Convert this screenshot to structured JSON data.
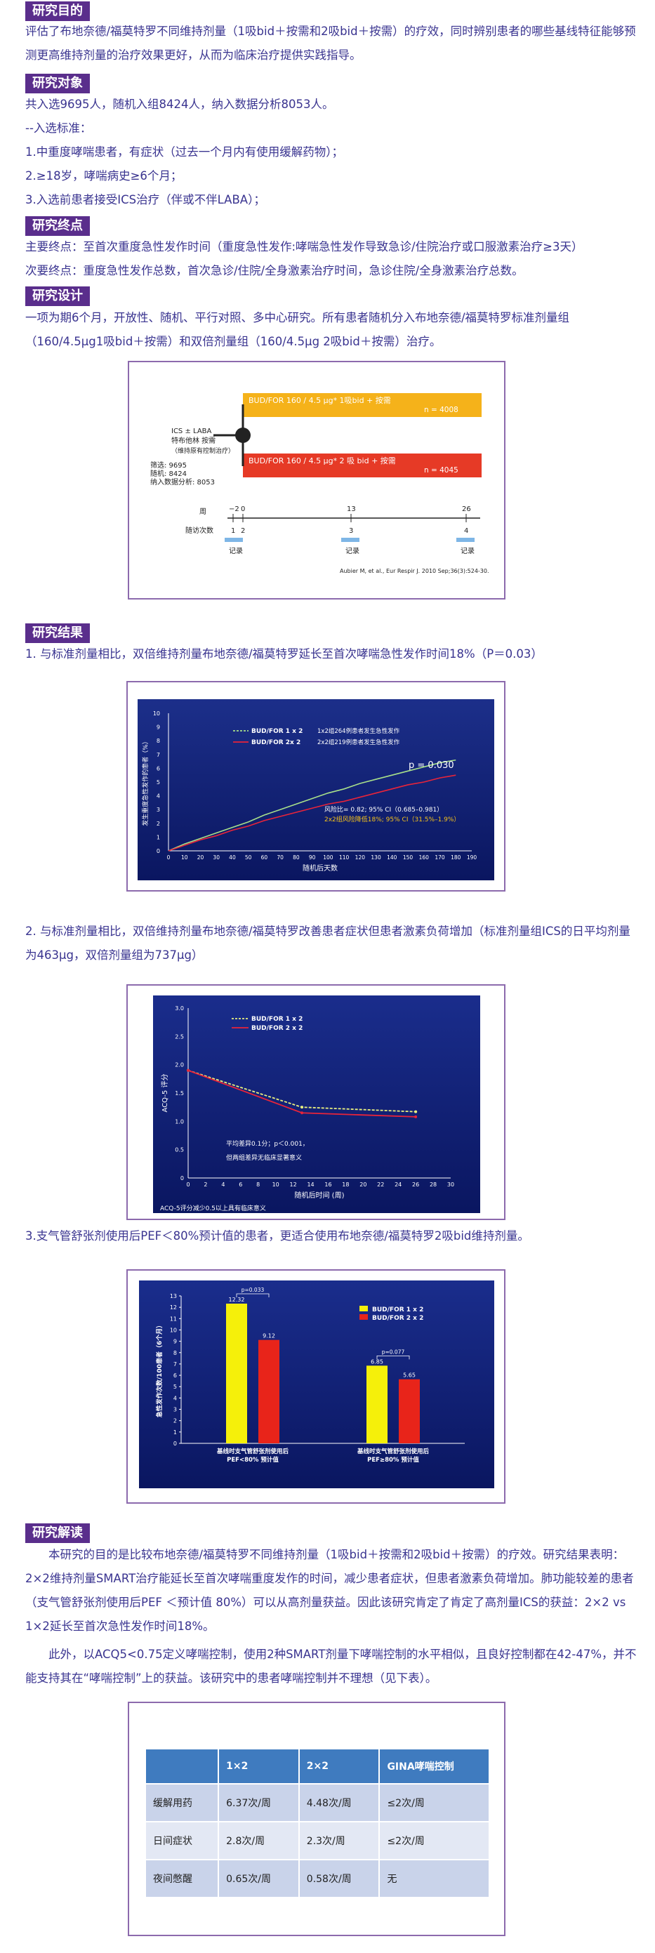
{
  "sections": {
    "purpose": {
      "title": "研究目的",
      "text": "评估了布地奈德/福莫特罗不同维持剂量（1吸bid＋按需和2吸bid＋按需）的疗效，同时辨别患者的哪些基线特征能够预测更高维持剂量的治疗效果更好，从而为临床治疗提供实践指导。"
    },
    "subjects": {
      "title": "研究对象",
      "lines": [
        "共入选9695人，随机入组8424人，纳入数据分析8053人。",
        "--入选标准：",
        "1.中重度哮喘患者，有症状（过去一个月内有使用缓解药物）；",
        "2.≥18岁，哮喘病史≥6个月；",
        "3.入选前患者接受ICS治疗（伴或不伴LABA）；"
      ]
    },
    "endpoints": {
      "title": "研究终点",
      "primary": "主要终点：至首次重度急性发作时间（重度急性发作:哮喘急性发作导致急诊/住院治疗或口服激素治疗≥3天）",
      "secondary": "次要终点：重度急性发作总数，首次急诊/住院/全身激素治疗时间，急诊住院/全身激素治疗总数。"
    },
    "design": {
      "title": "研究设计",
      "text": "一项为期6个月，开放性、随机、平行对照、多中心研究。所有患者随机分入布地奈德/福莫特罗标准剂量组（160/4.5μg1吸bid＋按需）和双倍剂量组（160/4.5μg 2吸bid＋按需）治疗。"
    },
    "results": {
      "title": "研究结果",
      "item1": "1. 与标准剂量相比，双倍维持剂量布地奈德/福莫特罗延长至首次哮喘急性发作时间18%（P＝0.03）",
      "item2": "2. 与标准剂量相比，双倍维持剂量布地奈德/福莫特罗改善患者症状但患者激素负荷增加（标准剂量组ICS的日平均剂量为463μg，双倍剂量组为737μg）",
      "item3": "3.支气管舒张剂使用后PEF＜80%预计值的患者，更适合使用布地奈德/福莫特罗2吸bid维持剂量。"
    },
    "interpretation": {
      "title": "研究解读",
      "para1": "本研究的目的是比较布地奈德/福莫特罗不同维持剂量（1吸bid＋按需和2吸bid＋按需）的疗效。研究结果表明：2×2维持剂量SMART治疗能延长至首次哮喘重度发作的时间，减少患者症状，但患者激素负荷增加。肺功能较差的患者（支气管舒张剂使用后PEF ＜预计值 80%）可以从高剂量获益。因此该研究肯定了肯定了高剂量ICS的获益：2×2 vs 1×2延长至首次急性发作时间18%。",
      "para2": "此外，以ACQ5<0.75定义哮喘控制，使用2种SMART剂量下哮喘控制的水平相似，且良好控制都在42-47%，并不能支持其在“哮喘控制”上的获益。该研究中的患者哮喘控制并不理想（见下表）。"
    }
  },
  "design_figure": {
    "arm1": "BUD/FOR 160 / 4.5 μg* 1吸bid + 按需",
    "arm1_n": "n = 4008",
    "arm2": "BUD/FOR 160 / 4.5 μg* 2 吸 bid + 按需",
    "arm2_n": "n = 4045",
    "left_label_1": "ICS ± LABA",
    "left_label_2": "特布他林 按需",
    "left_label_3": "（维持原有控制治疗）",
    "screened": "筛选: 9695",
    "randomized": "随机: 8424",
    "analyzed": "纳入数据分析: 8053",
    "week_label": "周",
    "visit_label": "随访次数",
    "record_label": "记录",
    "weeks": [
      "−2",
      "0",
      "13",
      "26"
    ],
    "visits": [
      "1",
      "2",
      "3",
      "4"
    ],
    "citation": "Aubier M, et al., Eur Respir J. 2010 Sep;36(3):524-30."
  },
  "figure1": {
    "chart_data": {
      "type": "line",
      "ylabel": "发生重度急性发作的患者（%）",
      "xlabel": "随机后天数",
      "ylim": [
        0,
        10
      ],
      "xlim": [
        0,
        190
      ],
      "yticks": [
        "0",
        "1",
        "2",
        "3",
        "4",
        "5",
        "6",
        "7",
        "8",
        "9",
        "10"
      ],
      "xticks": [
        "0",
        "10",
        "20",
        "30",
        "40",
        "50",
        "60",
        "70",
        "80",
        "90",
        "100",
        "110",
        "120",
        "130",
        "140",
        "150",
        "160",
        "170",
        "180",
        "190"
      ],
      "series": [
        {
          "name": "BUD/FOR 1 x 2",
          "color": "#a8e08a",
          "note": "1x2组264例患者发生急性发作",
          "x": [
            0,
            10,
            20,
            30,
            40,
            50,
            60,
            70,
            80,
            90,
            100,
            110,
            120,
            130,
            140,
            150,
            160,
            170,
            180
          ],
          "y": [
            0,
            0.5,
            0.9,
            1.3,
            1.7,
            2.1,
            2.6,
            3.0,
            3.4,
            3.8,
            4.2,
            4.5,
            4.9,
            5.2,
            5.5,
            5.8,
            6.1,
            6.4,
            6.6
          ]
        },
        {
          "name": "BUD/FOR  2x 2",
          "color": "#e8243a",
          "note": "2x2组219例患者发生急性发作",
          "x": [
            0,
            10,
            20,
            30,
            40,
            50,
            60,
            70,
            80,
            90,
            100,
            110,
            120,
            130,
            140,
            150,
            160,
            170,
            180
          ],
          "y": [
            0,
            0.4,
            0.8,
            1.1,
            1.5,
            1.8,
            2.2,
            2.5,
            2.8,
            3.1,
            3.4,
            3.6,
            3.9,
            4.2,
            4.5,
            4.8,
            5.0,
            5.3,
            5.5
          ]
        }
      ],
      "annotations": {
        "p": "p = 0.030",
        "hr": "风险比= 0.82; 95% CI（0.685–0.981）",
        "rr": "2x2组风险降低18%; 95% CI（31.5%–1.9%）"
      }
    }
  },
  "figure2": {
    "chart_data": {
      "type": "line",
      "ylabel": "ACQ-5 评分",
      "xlabel": "随机后时间 (周)",
      "ylim": [
        0,
        3.0
      ],
      "xlim": [
        0,
        30
      ],
      "yticks": [
        "0",
        "0.5",
        "1.0",
        "1.5",
        "2.0",
        "2.5",
        "3.0"
      ],
      "xticks": [
        "0",
        "2",
        "4",
        "6",
        "8",
        "10",
        "12",
        "14",
        "16",
        "18",
        "20",
        "22",
        "24",
        "26",
        "28",
        "30"
      ],
      "series": [
        {
          "name": "BUD/FOR 1 x 2",
          "color": "#e8f080",
          "x": [
            0,
            13,
            26
          ],
          "y": [
            1.9,
            1.25,
            1.17
          ]
        },
        {
          "name": "BUD/FOR 2 x 2",
          "color": "#e8243a",
          "x": [
            0,
            13,
            26
          ],
          "y": [
            1.9,
            1.15,
            1.08
          ]
        }
      ],
      "annotations": {
        "diff": "平均差异0.1分；p＜0.001，",
        "diff2": "但两组差异无临床显著意义",
        "footnote": "ACQ-5评分减少0.5以上具有临床意义"
      }
    }
  },
  "figure3": {
    "chart_data": {
      "type": "bar",
      "ylabel": "急性发作次数/100患者（6个月）",
      "ylim": [
        0,
        13
      ],
      "yticks": [
        "0",
        "1",
        "2",
        "3",
        "4",
        "5",
        "6",
        "7",
        "8",
        "9",
        "10",
        "11",
        "12",
        "13"
      ],
      "categories": [
        "基线时支气管舒张剂使用后\nPEF<80% 预计值",
        "基线时支气管舒张剂使用后\nPEF≥80% 预计值"
      ],
      "series": [
        {
          "name": "BUD/FOR 1 x 2",
          "color": "#f5f00a",
          "values": [
            12.32,
            6.85
          ]
        },
        {
          "name": "BUD/FOR 2 x 2",
          "color": "#e8241a",
          "values": [
            9.12,
            5.65
          ]
        }
      ],
      "value_labels": [
        [
          "12.32",
          "6.85"
        ],
        [
          "9.12",
          "5.65"
        ]
      ],
      "pvalues": [
        "p=0.033",
        "p=0.077"
      ]
    }
  },
  "table": {
    "headers": [
      "",
      "1×2",
      "2×2",
      "GINA哮喘控制"
    ],
    "rows": [
      [
        "缓解用药",
        "6.37次/周",
        "4.48次/周",
        "≤2次/周"
      ],
      [
        "日间症状",
        "2.8次/周",
        "2.3次/周",
        "≤2次/周"
      ],
      [
        "夜间憋醒",
        "0.65次/周",
        "0.58次/周",
        "无"
      ]
    ]
  }
}
